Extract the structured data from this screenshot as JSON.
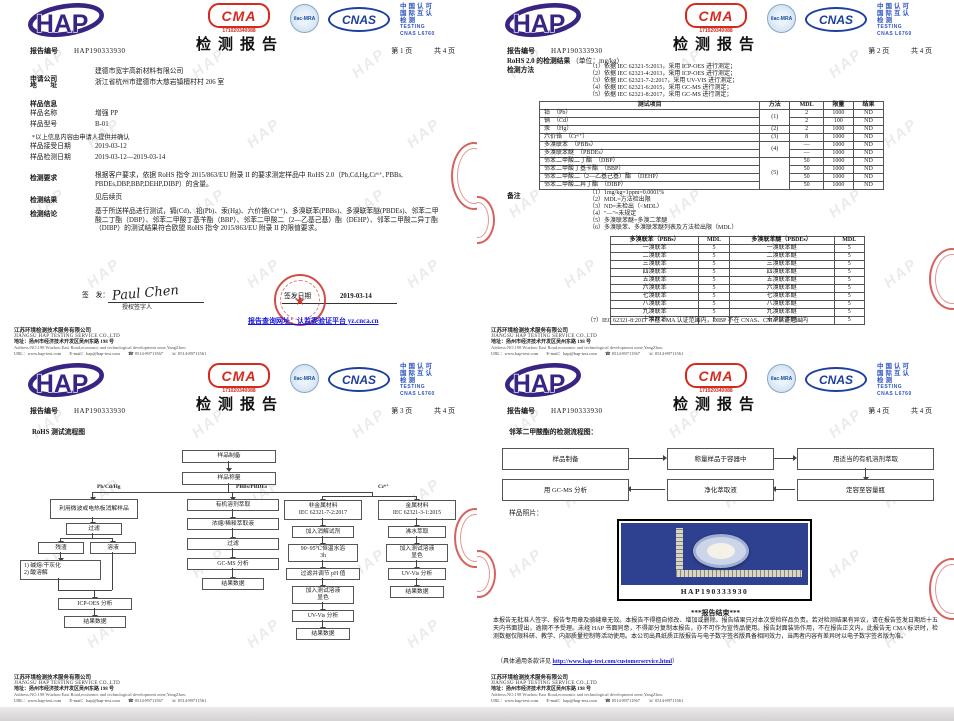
{
  "shared": {
    "logo_hap": "HAP",
    "cma_label": "CMA",
    "cma_number": "171020340088",
    "ilac_text": "ilac-MRA",
    "cnas_text": "CNAS",
    "accreditation": [
      "中国认可",
      "国际互认",
      "检测",
      "TESTING",
      "CNAS L6760"
    ],
    "title": "检测报告",
    "report_no_label": "报告编号",
    "report_no": "HAP190333930",
    "total_pages": "共 4 页",
    "watermark": "HAP",
    "stamp_star": "★",
    "footer": {
      "company_cn": "江苏环境检测技术服务有限公司",
      "company_en": "JIANGSU HAP TESTING SERVICE CO.,LTD",
      "address_cn": "地址：扬州市经济技术开发区吴州东路 198 号",
      "address_en": "Address:NO.198 Wuzhou East Road,economic and technological development zone,YangZhou",
      "url_label": "URL：",
      "url": "www.hap-test.com",
      "email_label": "E-mail：",
      "email": "hap@hap-test.com",
      "tel_icon": "☎",
      "tel": "0514-89711567",
      "fax_icon": "☏",
      "fax": "0514-89711561"
    }
  },
  "page1": {
    "page_label": "第 1 页",
    "applicant_label": "申请公司",
    "applicant": "建德市宽宇高新材料有限公司",
    "address_label": "地　　址",
    "address": "浙江省杭州市建德市大慈岩镇檀村村 206 室",
    "sample_info_title": "样品信息",
    "sample_name_label": "样品名称",
    "sample_name": "增强 PP",
    "sample_model_label": "样品型号",
    "sample_model": "B-01",
    "note_star": "*以上信息内容由申请人提供并确认",
    "receive_date_label": "样品接受日期",
    "receive_date": "2019-03-12",
    "test_date_label": "样品检测日期",
    "test_date": "2019-03-12—2019-03-14",
    "require_label": "检测要求",
    "require_text": "根据客户要求，依据 RoHS 指令 2015/863/EU 附录 II 的要求测定样品中 RoHS 2.0（Pb,Cd,Hg,Cr⁶⁺, PBBs, PBDEs,DBP,BBP,DEHP,DIBP）的含量。",
    "result_label": "检测结果",
    "result_text": "见后续页",
    "conclusion_label": "检测结论",
    "conclusion_text": "基于所送样品进行测试，镉(Cd)、铅(Pb)、汞(Hg)、六价铬(Cr⁶⁺)、多溴联苯(PBBs)、多溴联苯醚(PBDEs)、邻苯二甲酸二丁酯（DBP）、邻苯二甲酸丁基苄酯（BBP）、邻苯二甲酸二（2—乙基己基）酯（DEHP）、邻苯二甲酸二异丁酯（DIBP）的测试结果符合欧盟 RoHS 指令 2015/863/EU 附录 II 的限值要求。",
    "sign_label": "签　发：",
    "signature": "Paul Chen",
    "signer_title": "授权签字人",
    "issue_label": "签发日期",
    "issue_date": "2019-03-14",
    "query_link": "报告查询网址：认监委验证平台 yz.cnca.cn"
  },
  "page2": {
    "page_label": "第 2 页",
    "result_title": "RoHS 2.0 的检测结果",
    "result_unit": "（单位：mg/kg）",
    "method_label": "检测方法",
    "methods": [
      "（1）依据 IEC 62321-5:2013，采用 ICP-OES 进行测定；",
      "（2）依据 IEC 62321-4:2013，采用 ICP-OES 进行测定；",
      "（3）依据 IEC 62321-7-2:2017，采用 UV-VIS 进行测定；",
      "（4）依据 IEC 62321-6:2015，采用 GC-MS 进行测定；",
      "（5）依据 IEC 62321-8:2017，采用 GC-MS 进行测定；"
    ],
    "table1": {
      "headers": [
        "测试项目",
        "方法",
        "MDL",
        "限量",
        "结果"
      ],
      "rows": [
        {
          "item": "铅　（Pb）",
          "method": "(1)",
          "span": 2,
          "mdl": "2",
          "limit": "1000",
          "result": "ND"
        },
        {
          "item": "镉　（Cd）",
          "mdl": "2",
          "limit": "100",
          "result": "ND"
        },
        {
          "item": "汞　（Hg）",
          "method": "(2)",
          "span": 1,
          "mdl": "2",
          "limit": "1000",
          "result": "ND"
        },
        {
          "item": "六价铬　（Cr⁶⁺）",
          "method": "(3)",
          "span": 1,
          "mdl": "8",
          "limit": "1000",
          "result": "ND"
        },
        {
          "item": "多溴联苯　（PBBs）",
          "method": "(4)",
          "span": 2,
          "mdl": "—",
          "limit": "1000",
          "result": "ND"
        },
        {
          "item": "多溴联苯醚　（PBDEs）",
          "mdl": "—",
          "limit": "1000",
          "result": "ND"
        },
        {
          "item": "邻苯二甲酸二丁酯　（DBP）",
          "method": "(5)",
          "span": 4,
          "mdl": "50",
          "limit": "1000",
          "result": "ND"
        },
        {
          "item": "邻苯二甲酸丁基苄酯　（BBP）",
          "mdl": "50",
          "limit": "1000",
          "result": "ND"
        },
        {
          "item": "邻苯二甲酸二（2—乙基己基）酯　（DEHP）",
          "mdl": "50",
          "limit": "1000",
          "result": "ND"
        },
        {
          "item": "邻苯二甲酸二异丁酯　（DIBP）",
          "mdl": "50",
          "limit": "1000",
          "result": "ND"
        }
      ]
    },
    "notes_label": "备注",
    "notes": [
      "（1）1mg/kg=1ppm=0.0001%",
      "（2）MDL=方法检出限",
      "（3）ND=未检出（<MDL）",
      "（4）\"—\"=未规定",
      "（5）多溴联苯醚=多溴二苯醚",
      "（6）多溴联苯、多溴联苯醚列表及方法检出限（MDL）"
    ],
    "table2": {
      "headers": [
        "多溴联苯（PBBs）",
        "MDL",
        "多溴联苯醚（PBDEs）",
        "MDL"
      ],
      "rows": [
        [
          "一溴联苯",
          "5",
          "一溴联苯醚",
          "5"
        ],
        [
          "二溴联苯",
          "5",
          "二溴联苯醚",
          "5"
        ],
        [
          "三溴联苯",
          "5",
          "三溴联苯醚",
          "5"
        ],
        [
          "四溴联苯",
          "5",
          "四溴联苯醚",
          "5"
        ],
        [
          "五溴联苯",
          "5",
          "五溴联苯醚",
          "5"
        ],
        [
          "六溴联苯",
          "5",
          "六溴联苯醚",
          "5"
        ],
        [
          "七溴联苯",
          "5",
          "七溴联苯醚",
          "5"
        ],
        [
          "八溴联苯",
          "5",
          "八溴联苯醚",
          "5"
        ],
        [
          "九溴联苯",
          "5",
          "九溴联苯醚",
          "5"
        ],
        [
          "十溴联苯",
          "5",
          "十溴联苯醚",
          "5"
        ]
      ]
    },
    "note7": "（7）IEC 62321-8:2017 不在 CMA 认证范围内，DIBP 不在 CNAS、CMA 认证范围内"
  },
  "page3": {
    "page_label": "第 3 页",
    "flow_title": "RoHS 测试流程图",
    "flow": {
      "prep": "样品制备",
      "weigh": "样品称量",
      "lbl_left": "Pb/Cd/Hg",
      "lbl_mid": "PBBs/PBDEs",
      "lbl_right": "Cr⁶⁺",
      "l1": "利用微波或电热板消解样品",
      "l2": "过滤",
      "l3": "残渣",
      "l4": "溶液",
      "l5a": "1) 碱熔/干灰化",
      "l5b": "2) 酸溶解",
      "l6": "ICP-OES 分析",
      "l7": "结果数据",
      "m1": "有机溶剂萃取",
      "m2": "浓缩/稀释萃取液",
      "m3": "过滤",
      "m4": "GC-MS 分析",
      "m5": "结果数据",
      "rn1a": "非金属材料",
      "rn1b": "IEC 62321-7-2:2017",
      "rn2": "加入消解试剂",
      "rn3a": "90~95℃恒温水浴",
      "rn3b": "3h",
      "rn4": "过滤并调节 pH 值",
      "rn5a": "加入测试溶液",
      "rn5b": "显色",
      "rn6": "UV-Vis 分析",
      "rn7": "结果数据",
      "rm1a": "金属材料",
      "rm1b": "IEC 62321-3-1:2015",
      "rm2": "沸水萃取",
      "rm3a": "加入测试溶液",
      "rm3b": "显色",
      "rm4": "UV-Vis 分析",
      "rm5": "结果数据"
    }
  },
  "page4": {
    "page_label": "第 4 页",
    "flow_title": "邻苯二甲酸酯的检测流程图：",
    "flow": {
      "f1": "样品制备",
      "f2": "称量样品于容器中",
      "f3": "用适当的有机溶剂萃取",
      "f4": "定容至容量瓶",
      "f5": "净化萃取液",
      "f6": "用 GC-MS 分析"
    },
    "photo_label": "样品照片：",
    "photo_caption": "HAP190333930",
    "end_text": "***报告结束***",
    "disclaimer": "本报告无批准人签字、报告专用章及骑缝章无效。本报告不得擅自修改、增加或删除。报告结果只对本次受检样品负责。若对检测结果有异议，请在报告签发日期后十五天内书面提出，逾期不予受理。未经 HAP 书面同意，不得部分复制本报告，亦不可作为宣传品使用。报告封面装饰作用，不在报告正文内。此报告无 CMA 标识时，检测数据仅限科研、教学、内部质量控制等活动使用。本公司出具纸质正版报告与电子数字签名版具备相同效力，当两者内容有差异时以电子数字签名版为准。",
    "terms_prefix": "（具体通用条款详见 ",
    "terms_url": "http://www.hap-test.com/customerservice.html",
    "terms_suffix": "）"
  }
}
